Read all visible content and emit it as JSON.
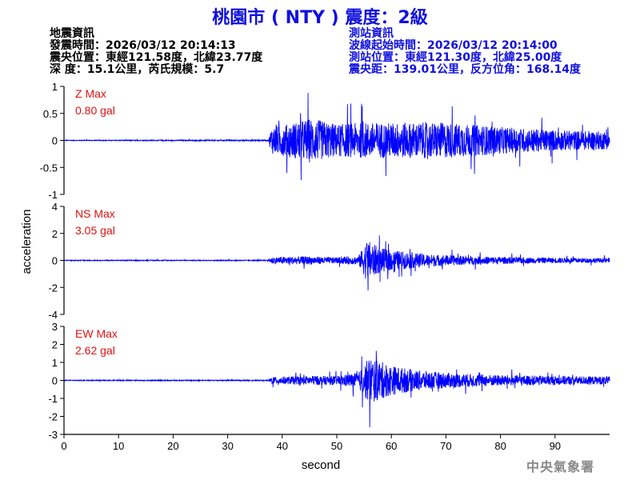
{
  "title": "桃園市 ( NTY ) 震度：2級",
  "earthquake_info": {
    "heading": "地震資訊",
    "origin_time": "發震時間：2026/03/12 20:14:13",
    "epicenter": "震央位置：東經121.58度，北緯23.77度",
    "depth_mag": "深   度：15.1公里，芮氏規模：5.7"
  },
  "station_info": {
    "heading": "測站資訊",
    "wave_start": "波線起始時間：2026/03/12 20:14:00",
    "location": "測站位置：東經121.30度，北緯25.00度",
    "distance": "震央距：139.01公里，反方位角：168.14度"
  },
  "credit": "中央氣象署",
  "colors": {
    "trace": "#0000ff",
    "title": "#1010e0",
    "max_label": "#e01010",
    "axis": "#000000"
  },
  "chart_data": {
    "type": "line",
    "xlabel": "second",
    "ylabel": "acceleration",
    "xlim": [
      0,
      100
    ],
    "x_ticks": [
      0,
      10,
      20,
      30,
      40,
      50,
      60,
      70,
      80,
      90
    ],
    "x_tick_labels": [
      "0",
      "10",
      "20",
      "30",
      "40",
      "50",
      "60",
      "70",
      "80",
      "90"
    ],
    "grid": false,
    "panels": [
      {
        "component": "Z",
        "max_title": "Z Max",
        "max_value": "0.80 gal",
        "ylim": [
          -1,
          1
        ],
        "y_ticks": [
          -1,
          -0.5,
          0,
          0.5,
          1
        ],
        "y_tick_labels": [
          "-1",
          "-0.5",
          "0",
          "0.5",
          "1"
        ],
        "noise_level": 0.015,
        "envelope": [
          [
            0,
            0.01
          ],
          [
            37.5,
            0.02
          ],
          [
            38,
            0.45
          ],
          [
            41,
            0.55
          ],
          [
            45,
            0.75
          ],
          [
            50,
            0.55
          ],
          [
            55,
            0.6
          ],
          [
            58,
            0.6
          ],
          [
            62,
            0.6
          ],
          [
            70,
            0.6
          ],
          [
            80,
            0.45
          ],
          [
            90,
            0.35
          ],
          [
            100,
            0.3
          ]
        ]
      },
      {
        "component": "NS",
        "max_title": "NS Max",
        "max_value": "3.05 gal",
        "ylim": [
          -4,
          4
        ],
        "y_ticks": [
          -4,
          -2,
          0,
          2,
          4
        ],
        "y_tick_labels": [
          "-4",
          "-2",
          "0",
          "2",
          "4"
        ],
        "noise_level": 0.05,
        "envelope": [
          [
            0,
            0.05
          ],
          [
            37.5,
            0.06
          ],
          [
            38,
            0.45
          ],
          [
            45,
            0.55
          ],
          [
            50,
            0.4
          ],
          [
            54,
            0.6
          ],
          [
            55.5,
            2.8
          ],
          [
            58,
            1.6
          ],
          [
            62,
            1.2
          ],
          [
            67,
            0.8
          ],
          [
            75,
            0.55
          ],
          [
            85,
            0.4
          ],
          [
            100,
            0.3
          ]
        ]
      },
      {
        "component": "EW",
        "max_title": "EW Max",
        "max_value": "2.62 gal",
        "ylim": [
          -3,
          3
        ],
        "y_ticks": [
          -3,
          -2,
          -1,
          0,
          1,
          2,
          3
        ],
        "y_tick_labels": [
          "-3",
          "-2",
          "-1",
          "0",
          "1",
          "2",
          "3"
        ],
        "noise_level": 0.04,
        "envelope": [
          [
            0,
            0.04
          ],
          [
            37.5,
            0.05
          ],
          [
            38,
            0.35
          ],
          [
            45,
            0.45
          ],
          [
            50,
            0.45
          ],
          [
            54,
            0.8
          ],
          [
            56,
            2.4
          ],
          [
            60,
            1.5
          ],
          [
            65,
            1.0
          ],
          [
            72,
            0.7
          ],
          [
            80,
            0.55
          ],
          [
            90,
            0.45
          ],
          [
            100,
            0.4
          ]
        ]
      }
    ]
  }
}
